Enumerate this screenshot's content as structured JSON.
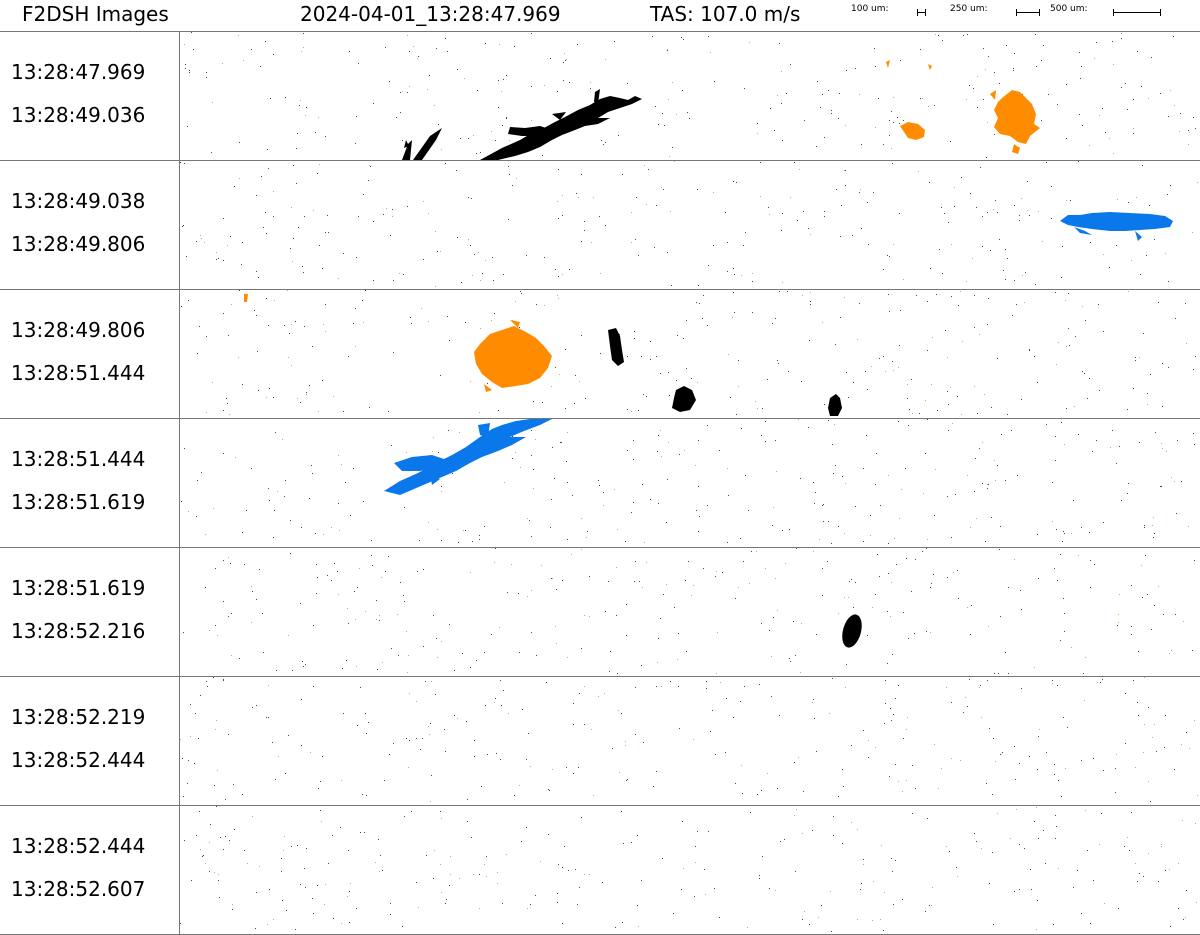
{
  "header": {
    "title": "F2DSH Images",
    "timestamp": "2024-04-01_13:28:47.969",
    "tas": "TAS: 107.0 m/s",
    "scale_labels": [
      "100 um:",
      "250 um:",
      "500 um:"
    ]
  },
  "strips": [
    {
      "start": "13:28:47.969",
      "end": "13:28:49.036"
    },
    {
      "start": "13:28:49.038",
      "end": "13:28:49.806"
    },
    {
      "start": "13:28:49.806",
      "end": "13:28:51.444"
    },
    {
      "start": "13:28:51.444",
      "end": "13:28:51.619"
    },
    {
      "start": "13:28:51.619",
      "end": "13:28:52.216"
    },
    {
      "start": "13:28:52.219",
      "end": "13:28:52.444"
    },
    {
      "start": "13:28:52.444",
      "end": "13:28:52.607"
    }
  ],
  "colors": {
    "black_particle": "#000000",
    "orange_particle": "#ff8c00",
    "blue_particle": "#0a78ea",
    "divider": "#777777"
  }
}
